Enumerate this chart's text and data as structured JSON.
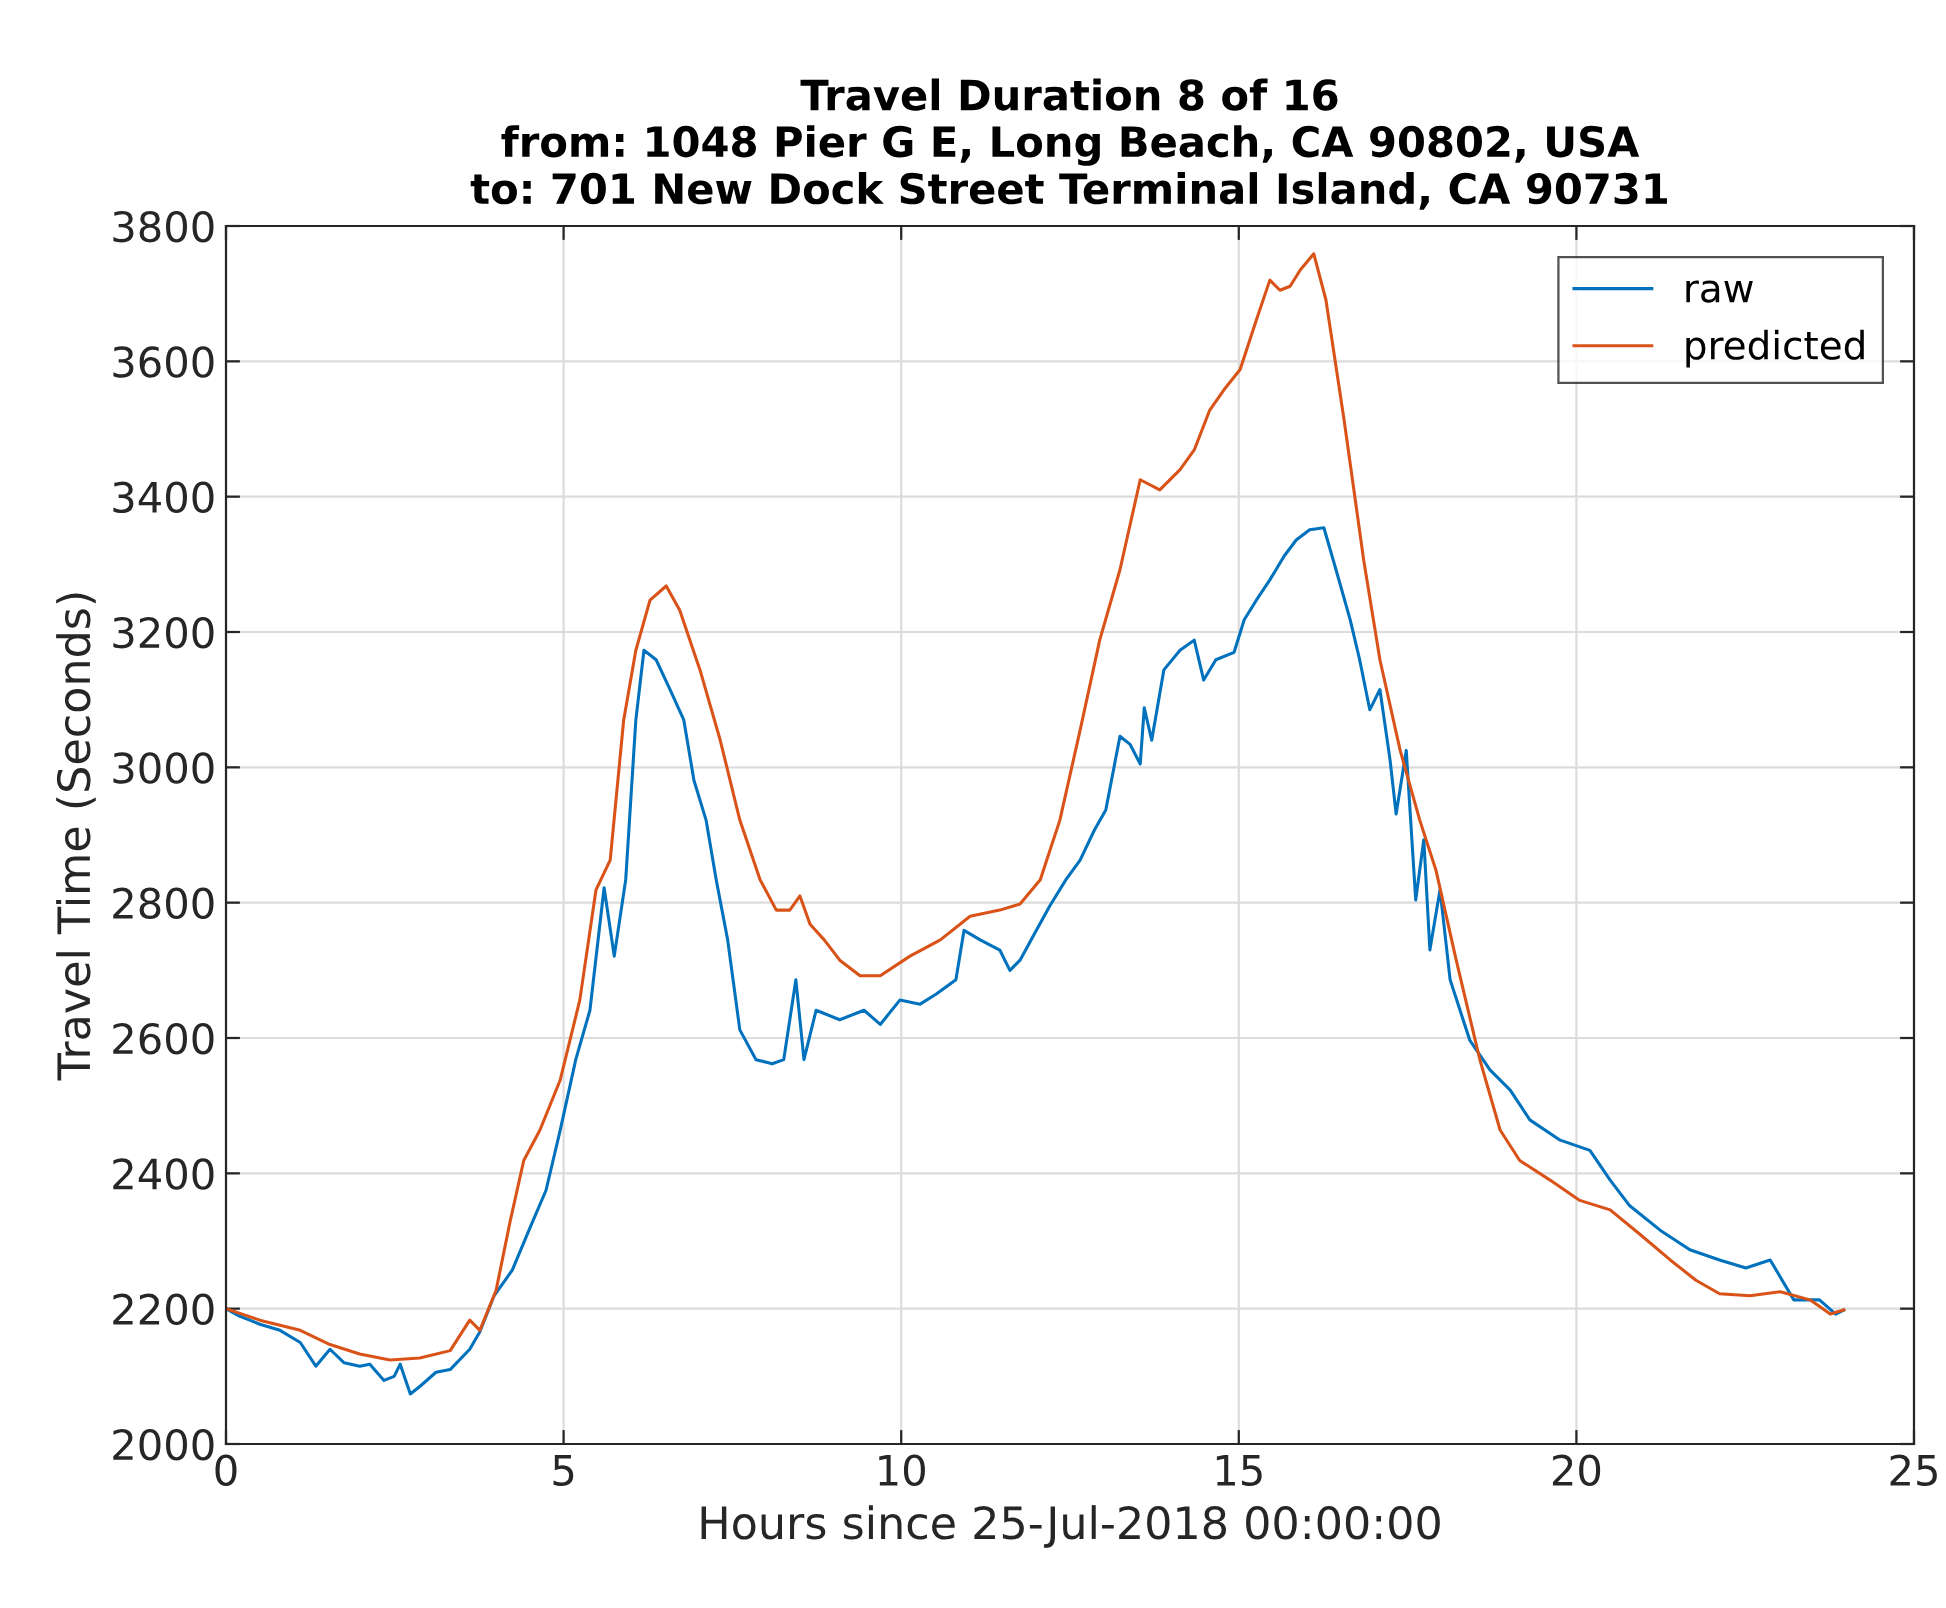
{
  "chart_data": {
    "type": "line",
    "title": "Travel Duration 8 of 16\nfrom: 1048 Pier G E, Long Beach, CA 90802, USA\nto: 701 New Dock Street Terminal Island, CA 90731",
    "xlabel": "Hours since 25-Jul-2018 00:00:00",
    "ylabel": "Travel Time (Seconds)",
    "xlim": [
      0,
      25
    ],
    "xticks": [
      0,
      5,
      10,
      15,
      20,
      25
    ],
    "ylim": [
      2000,
      3800
    ],
    "yticks": [
      2000,
      2200,
      2400,
      2600,
      2800,
      3000,
      3200,
      3400,
      3600,
      3800
    ],
    "grid": true,
    "legend": "top right",
    "marker": "none",
    "line_style": "solid",
    "series": [
      {
        "name": "raw",
        "color": "#0072bd",
        "x": [
          0,
          0.2,
          0.5,
          0.8,
          1.1,
          1.33,
          1.54,
          1.75,
          1.98,
          2.13,
          2.34,
          2.49,
          2.58,
          2.73,
          2.87,
          3.11,
          3.32,
          3.61,
          3.76,
          3.97,
          4.24,
          4.5,
          4.74,
          4.95,
          5.18,
          5.39,
          5.6,
          5.75,
          5.92,
          6.07,
          6.19,
          6.37,
          6.58,
          6.78,
          6.93,
          7.11,
          7.26,
          7.43,
          7.61,
          7.85,
          8.09,
          8.26,
          8.44,
          8.56,
          8.74,
          9.09,
          9.45,
          9.69,
          9.98,
          10.28,
          10.52,
          10.81,
          10.93,
          11.17,
          11.46,
          11.61,
          11.76,
          12.0,
          12.2,
          12.44,
          12.65,
          12.86,
          13.03,
          13.24,
          13.39,
          13.54,
          13.6,
          13.71,
          13.89,
          14.13,
          14.34,
          14.48,
          14.66,
          14.93,
          15.08,
          15.26,
          15.46,
          15.67,
          15.85,
          16.05,
          16.26,
          16.44,
          16.65,
          16.79,
          16.94,
          17.09,
          17.24,
          17.33,
          17.48,
          17.62,
          17.74,
          17.83,
          17.98,
          18.13,
          18.42,
          18.72,
          19.02,
          19.31,
          19.76,
          20.2,
          20.5,
          20.79,
          21.24,
          21.68,
          22.12,
          22.51,
          22.87,
          23.22,
          23.6,
          23.84,
          23.96
        ],
        "values": [
          2200,
          2189,
          2177,
          2168,
          2150,
          2115,
          2140,
          2120,
          2115,
          2118,
          2094,
          2100,
          2118,
          2074,
          2085,
          2106,
          2110,
          2140,
          2166,
          2219,
          2257,
          2319,
          2375,
          2464,
          2568,
          2641,
          2822,
          2721,
          2834,
          3070,
          3173,
          3159,
          3114,
          3070,
          2981,
          2922,
          2834,
          2745,
          2612,
          2568,
          2562,
          2568,
          2686,
          2568,
          2641,
          2627,
          2641,
          2620,
          2656,
          2650,
          2665,
          2686,
          2759,
          2745,
          2730,
          2700,
          2715,
          2759,
          2795,
          2834,
          2863,
          2907,
          2937,
          3046,
          3034,
          3005,
          3088,
          3040,
          3144,
          3173,
          3188,
          3129,
          3159,
          3170,
          3218,
          3247,
          3277,
          3312,
          3336,
          3351,
          3354,
          3292,
          3218,
          3159,
          3085,
          3115,
          3011,
          2931,
          3025,
          2804,
          2893,
          2730,
          2819,
          2686,
          2597,
          2553,
          2523,
          2479,
          2449,
          2434,
          2390,
          2352,
          2316,
          2287,
          2272,
          2260,
          2272,
          2213,
          2213,
          2192,
          2198
        ]
      },
      {
        "name": "predicted",
        "color": "#d95319",
        "x": [
          0,
          0.5,
          1.1,
          1.54,
          1.98,
          2.43,
          2.87,
          3.32,
          3.61,
          3.76,
          4.0,
          4.21,
          4.41,
          4.65,
          4.95,
          5.24,
          5.48,
          5.69,
          5.89,
          6.07,
          6.28,
          6.52,
          6.72,
          7.02,
          7.32,
          7.61,
          7.91,
          8.15,
          8.35,
          8.5,
          8.65,
          8.86,
          9.09,
          9.39,
          9.69,
          10.13,
          10.58,
          11.02,
          11.46,
          11.76,
          12.06,
          12.35,
          12.65,
          12.94,
          13.24,
          13.54,
          13.83,
          14.13,
          14.34,
          14.57,
          14.78,
          15.02,
          15.26,
          15.46,
          15.61,
          15.76,
          15.91,
          16.11,
          16.29,
          16.56,
          16.85,
          17.09,
          17.39,
          17.68,
          17.92,
          18.22,
          18.57,
          18.87,
          19.16,
          19.61,
          20.05,
          20.5,
          20.94,
          21.39,
          21.77,
          22.12,
          22.57,
          23.02,
          23.46,
          23.76,
          23.96
        ],
        "values": [
          2200,
          2183,
          2168,
          2147,
          2133,
          2124,
          2127,
          2138,
          2183,
          2168,
          2227,
          2330,
          2419,
          2464,
          2538,
          2656,
          2819,
          2863,
          3070,
          3173,
          3247,
          3268,
          3232,
          3144,
          3040,
          2922,
          2834,
          2789,
          2789,
          2810,
          2768,
          2745,
          2715,
          2692,
          2692,
          2721,
          2745,
          2780,
          2789,
          2798,
          2834,
          2922,
          3055,
          3188,
          3292,
          3425,
          3410,
          3440,
          3469,
          3528,
          3558,
          3588,
          3661,
          3720,
          3705,
          3711,
          3735,
          3759,
          3691,
          3513,
          3306,
          3159,
          3025,
          2922,
          2848,
          2715,
          2568,
          2464,
          2419,
          2390,
          2360,
          2346,
          2310,
          2272,
          2242,
          2222,
          2219,
          2225,
          2213,
          2192,
          2198
        ]
      }
    ]
  }
}
